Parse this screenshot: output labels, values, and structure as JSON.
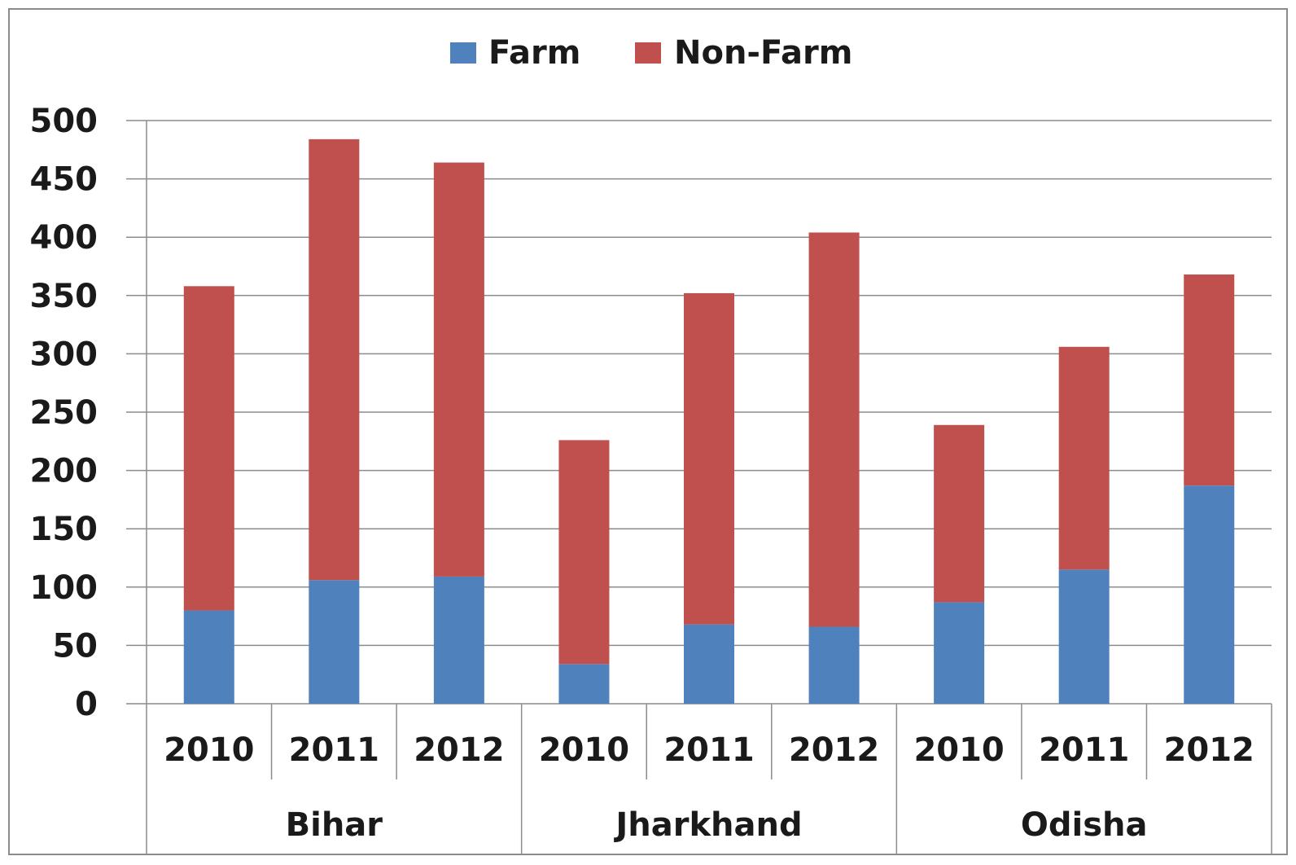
{
  "chart_data": {
    "type": "bar",
    "stacked": true,
    "title": "",
    "xlabel": "",
    "ylabel": "",
    "ylim": [
      0,
      500
    ],
    "yticks": [
      0,
      50,
      100,
      150,
      200,
      250,
      300,
      350,
      400,
      450,
      500
    ],
    "grid": true,
    "legend_position": "top",
    "groups": [
      {
        "name": "Bihar",
        "categories": [
          "2010",
          "2011",
          "2012"
        ]
      },
      {
        "name": "Jharkhand",
        "categories": [
          "2010",
          "2011",
          "2012"
        ]
      },
      {
        "name": "Odisha",
        "categories": [
          "2010",
          "2011",
          "2012"
        ]
      }
    ],
    "categories": [
      "2010",
      "2011",
      "2012",
      "2010",
      "2011",
      "2012",
      "2010",
      "2011",
      "2012"
    ],
    "series": [
      {
        "name": "Farm",
        "color": "#4f81bd",
        "values": [
          80,
          106,
          109,
          34,
          68,
          66,
          87,
          115,
          187
        ]
      },
      {
        "name": "Non-Farm",
        "color": "#c0504d",
        "values": [
          278,
          378,
          355,
          192,
          284,
          338,
          152,
          191,
          181
        ]
      }
    ]
  }
}
